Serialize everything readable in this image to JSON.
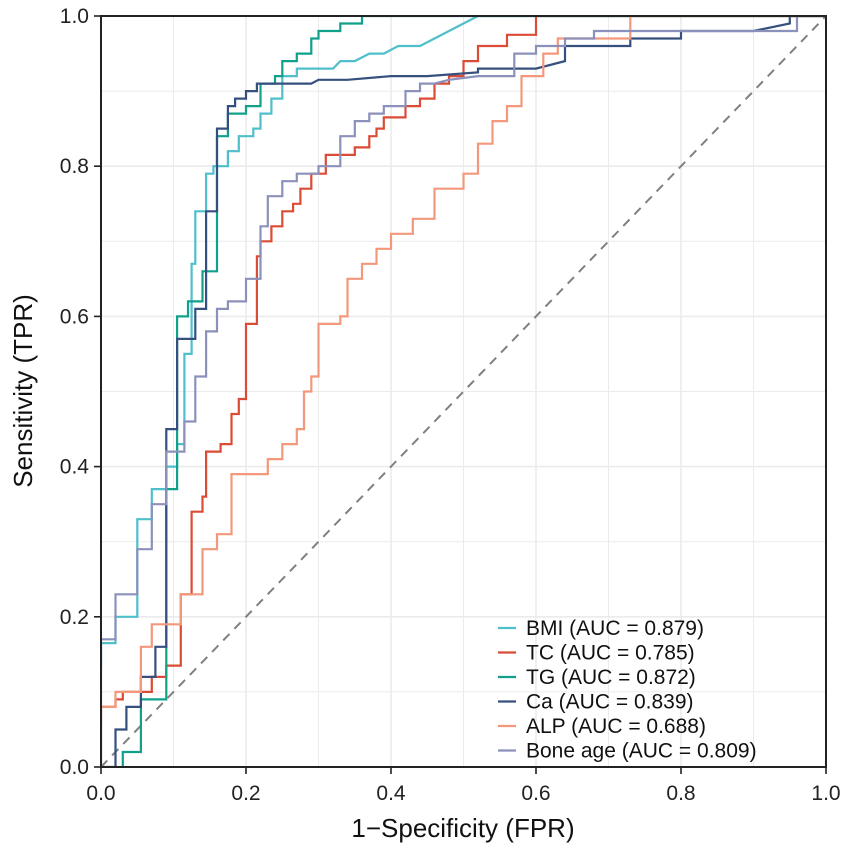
{
  "chart_data": {
    "type": "line",
    "title": "",
    "xlabel": "1−Specificity (FPR)",
    "ylabel": "Sensitivity (TPR)",
    "xlim": [
      0,
      1
    ],
    "ylim": [
      0,
      1
    ],
    "x_ticks": [
      "0.0",
      "0.2",
      "0.4",
      "0.6",
      "0.8",
      "1.0"
    ],
    "y_ticks": [
      "0.0",
      "0.2",
      "0.4",
      "0.6",
      "0.8",
      "1.0"
    ],
    "grid": true,
    "legend_position": "bottom-right",
    "reference_line": {
      "style": "dashed",
      "color": "#808080",
      "from": [
        0,
        0
      ],
      "to": [
        1,
        1
      ]
    },
    "series": [
      {
        "name": "BMI",
        "legend": "BMI (AUC = 0.879)",
        "color": "#4EBFCB",
        "fpr": [
          0,
          0,
          0.02,
          0.02,
          0.05,
          0.05,
          0.07,
          0.07,
          0.09,
          0.09,
          0.105,
          0.105,
          0.115,
          0.115,
          0.125,
          0.125,
          0.13,
          0.13,
          0.145,
          0.145,
          0.155,
          0.155,
          0.175,
          0.175,
          0.19,
          0.19,
          0.21,
          0.21,
          0.22,
          0.22,
          0.235,
          0.235,
          0.25,
          0.25,
          0.27,
          0.27,
          0.3,
          0.32,
          0.33,
          0.35,
          0.37,
          0.39,
          0.41,
          0.44,
          0.46,
          0.5,
          0.52,
          0.54,
          0.6,
          0.7,
          1
        ],
        "tpr": [
          0.13,
          0.165,
          0.165,
          0.2,
          0.2,
          0.33,
          0.33,
          0.37,
          0.37,
          0.4,
          0.4,
          0.43,
          0.43,
          0.55,
          0.55,
          0.67,
          0.67,
          0.74,
          0.74,
          0.79,
          0.79,
          0.8,
          0.8,
          0.82,
          0.82,
          0.84,
          0.84,
          0.85,
          0.85,
          0.87,
          0.87,
          0.89,
          0.89,
          0.92,
          0.92,
          0.93,
          0.93,
          0.93,
          0.94,
          0.94,
          0.95,
          0.95,
          0.96,
          0.96,
          0.97,
          0.99,
          1.0,
          1.0,
          1.0,
          1.0,
          1.0
        ]
      },
      {
        "name": "TC",
        "legend": "TC (AUC = 0.785)",
        "color": "#DB4B35",
        "fpr": [
          0,
          0,
          0.02,
          0.02,
          0.03,
          0.03,
          0.07,
          0.07,
          0.09,
          0.09,
          0.11,
          0.11,
          0.125,
          0.125,
          0.14,
          0.14,
          0.145,
          0.145,
          0.165,
          0.165,
          0.18,
          0.18,
          0.19,
          0.19,
          0.2,
          0.2,
          0.215,
          0.215,
          0.22,
          0.22,
          0.235,
          0.235,
          0.25,
          0.25,
          0.265,
          0.265,
          0.275,
          0.275,
          0.29,
          0.29,
          0.31,
          0.31,
          0.35,
          0.35,
          0.37,
          0.37,
          0.38,
          0.38,
          0.39,
          0.39,
          0.42,
          0.42,
          0.44,
          0.44,
          0.46,
          0.46,
          0.48,
          0.48,
          0.5,
          0.5,
          0.52,
          0.52,
          0.56,
          0.56,
          0.6,
          0.6,
          1
        ],
        "tpr": [
          0.06,
          0.08,
          0.08,
          0.09,
          0.09,
          0.1,
          0.1,
          0.12,
          0.12,
          0.135,
          0.135,
          0.23,
          0.23,
          0.34,
          0.34,
          0.36,
          0.36,
          0.42,
          0.42,
          0.43,
          0.43,
          0.47,
          0.47,
          0.49,
          0.49,
          0.59,
          0.59,
          0.68,
          0.68,
          0.7,
          0.7,
          0.72,
          0.72,
          0.74,
          0.74,
          0.75,
          0.75,
          0.77,
          0.77,
          0.79,
          0.79,
          0.815,
          0.815,
          0.825,
          0.825,
          0.84,
          0.84,
          0.85,
          0.85,
          0.865,
          0.865,
          0.88,
          0.88,
          0.89,
          0.89,
          0.91,
          0.91,
          0.92,
          0.92,
          0.94,
          0.94,
          0.96,
          0.96,
          0.975,
          0.975,
          1.0,
          1.0
        ]
      },
      {
        "name": "TG",
        "legend": "TG (AUC = 0.872)",
        "color": "#11A08A",
        "fpr": [
          0.03,
          0.03,
          0.055,
          0.055,
          0.09,
          0.09,
          0.105,
          0.105,
          0.12,
          0.12,
          0.14,
          0.14,
          0.16,
          0.16,
          0.175,
          0.175,
          0.2,
          0.2,
          0.22,
          0.22,
          0.24,
          0.24,
          0.25,
          0.25,
          0.27,
          0.27,
          0.29,
          0.29,
          0.3,
          0.3,
          0.33,
          0.33,
          0.36,
          0.36,
          0.38,
          0.38,
          1
        ],
        "tpr": [
          0.0,
          0.02,
          0.02,
          0.09,
          0.09,
          0.37,
          0.37,
          0.6,
          0.6,
          0.62,
          0.62,
          0.66,
          0.66,
          0.84,
          0.84,
          0.87,
          0.87,
          0.88,
          0.88,
          0.91,
          0.91,
          0.92,
          0.92,
          0.94,
          0.94,
          0.95,
          0.95,
          0.97,
          0.97,
          0.98,
          0.98,
          0.99,
          0.99,
          1.0,
          1.0,
          1.0,
          1.0
        ]
      },
      {
        "name": "Ca",
        "legend": "Ca (AUC = 0.839)",
        "color": "#35507E",
        "fpr": [
          0,
          0.02,
          0.02,
          0.035,
          0.035,
          0.055,
          0.055,
          0.075,
          0.075,
          0.09,
          0.09,
          0.105,
          0.105,
          0.13,
          0.13,
          0.145,
          0.145,
          0.16,
          0.16,
          0.175,
          0.175,
          0.185,
          0.185,
          0.2,
          0.2,
          0.215,
          0.215,
          0.24,
          0.24,
          0.29,
          0.3,
          0.34,
          0.4,
          0.45,
          0.52,
          0.52,
          0.6,
          0.64,
          0.64,
          0.68,
          0.73,
          0.73,
          0.8,
          0.8,
          0.9,
          0.95,
          0.95,
          1
        ],
        "tpr": [
          0,
          0,
          0.05,
          0.05,
          0.08,
          0.08,
          0.12,
          0.12,
          0.16,
          0.16,
          0.45,
          0.45,
          0.57,
          0.57,
          0.61,
          0.61,
          0.74,
          0.74,
          0.85,
          0.85,
          0.88,
          0.88,
          0.89,
          0.89,
          0.9,
          0.9,
          0.91,
          0.91,
          0.91,
          0.91,
          0.915,
          0.915,
          0.92,
          0.92,
          0.925,
          0.93,
          0.93,
          0.94,
          0.96,
          0.96,
          0.96,
          0.97,
          0.97,
          0.98,
          0.98,
          0.99,
          1.0,
          1.0
        ]
      },
      {
        "name": "ALP",
        "legend": "ALP (AUC = 0.688)",
        "color": "#F4987C",
        "fpr": [
          0,
          0,
          0.02,
          0.02,
          0.055,
          0.055,
          0.07,
          0.07,
          0.11,
          0.11,
          0.14,
          0.14,
          0.16,
          0.16,
          0.18,
          0.18,
          0.23,
          0.23,
          0.25,
          0.25,
          0.27,
          0.27,
          0.28,
          0.28,
          0.29,
          0.29,
          0.3,
          0.3,
          0.33,
          0.33,
          0.34,
          0.34,
          0.36,
          0.36,
          0.38,
          0.38,
          0.4,
          0.4,
          0.43,
          0.43,
          0.46,
          0.46,
          0.5,
          0.5,
          0.52,
          0.52,
          0.54,
          0.54,
          0.56,
          0.56,
          0.58,
          0.58,
          0.61,
          0.61,
          0.63,
          0.63,
          0.73,
          0.73,
          1
        ],
        "tpr": [
          0,
          0.08,
          0.08,
          0.1,
          0.1,
          0.16,
          0.16,
          0.19,
          0.19,
          0.23,
          0.23,
          0.29,
          0.29,
          0.31,
          0.31,
          0.39,
          0.39,
          0.41,
          0.41,
          0.43,
          0.43,
          0.45,
          0.45,
          0.5,
          0.5,
          0.52,
          0.52,
          0.59,
          0.59,
          0.6,
          0.6,
          0.65,
          0.65,
          0.67,
          0.67,
          0.69,
          0.69,
          0.71,
          0.71,
          0.73,
          0.73,
          0.77,
          0.77,
          0.79,
          0.79,
          0.83,
          0.83,
          0.86,
          0.86,
          0.88,
          0.88,
          0.92,
          0.92,
          0.95,
          0.95,
          0.97,
          0.97,
          1.0,
          1.0
        ]
      },
      {
        "name": "Bone age",
        "legend": "Bone age (AUC = 0.809)",
        "color": "#8B91BA",
        "fpr": [
          0,
          0,
          0.02,
          0.02,
          0.05,
          0.05,
          0.07,
          0.07,
          0.09,
          0.09,
          0.115,
          0.115,
          0.13,
          0.13,
          0.145,
          0.145,
          0.16,
          0.16,
          0.175,
          0.175,
          0.2,
          0.2,
          0.22,
          0.22,
          0.23,
          0.23,
          0.25,
          0.25,
          0.27,
          0.27,
          0.3,
          0.3,
          0.33,
          0.33,
          0.35,
          0.35,
          0.37,
          0.37,
          0.39,
          0.39,
          0.42,
          0.42,
          0.44,
          0.44,
          0.46,
          0.48,
          0.52,
          0.55,
          0.57,
          0.57,
          0.6,
          0.6,
          0.64,
          0.64,
          0.68,
          0.68,
          0.73,
          0.73,
          0.8,
          0.8,
          0.96,
          0.96
        ],
        "tpr": [
          0,
          0.17,
          0.17,
          0.23,
          0.23,
          0.29,
          0.29,
          0.35,
          0.35,
          0.42,
          0.42,
          0.46,
          0.46,
          0.52,
          0.52,
          0.58,
          0.58,
          0.61,
          0.61,
          0.62,
          0.62,
          0.65,
          0.65,
          0.72,
          0.72,
          0.76,
          0.76,
          0.78,
          0.78,
          0.79,
          0.79,
          0.8,
          0.8,
          0.84,
          0.84,
          0.86,
          0.86,
          0.87,
          0.87,
          0.88,
          0.88,
          0.9,
          0.9,
          0.91,
          0.91,
          0.915,
          0.92,
          0.92,
          0.92,
          0.95,
          0.95,
          0.96,
          0.96,
          0.97,
          0.97,
          0.98,
          0.98,
          0.98,
          0.98,
          0.98,
          0.98,
          1.0
        ]
      }
    ]
  }
}
